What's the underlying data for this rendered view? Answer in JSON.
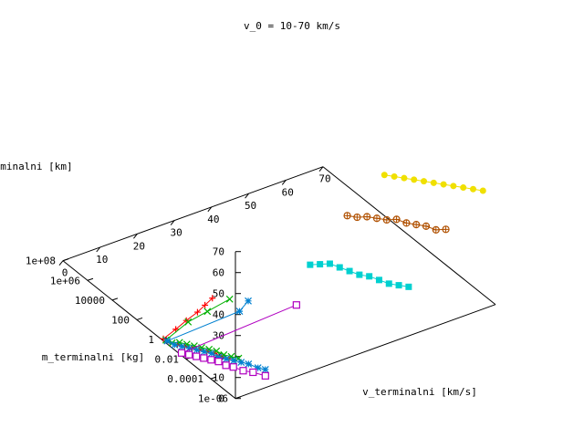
{
  "chart_data": {
    "type": "scatter",
    "title": "v_0 = 10-70 km/s",
    "xlabel": "v_terminalni [km/s]",
    "ylabel": "m_terminalni [kg]",
    "zlabel": "terminalni [km]",
    "x_ticks": [
      "0",
      "10",
      "20",
      "30",
      "40",
      "50",
      "60",
      "70"
    ],
    "y_ticks": [
      "1e-06",
      "0.0001",
      "0.01",
      "1",
      "100",
      "10000",
      "1e+06",
      "1e+08"
    ],
    "z_ticks": [
      "0",
      "10",
      "20",
      "30",
      "40",
      "50",
      "60",
      "70"
    ],
    "grid": false,
    "series": [
      {
        "color": "#ff0000",
        "marker": "plus",
        "points": [
          {
            "v": 0.5,
            "logm": 0.0,
            "h": 0
          },
          {
            "v": 5,
            "logm": 0.35,
            "h": 0
          },
          {
            "v": 9,
            "logm": 0.7,
            "h": 0
          },
          {
            "v": 13,
            "logm": 1.0,
            "h": 0
          },
          {
            "v": 16,
            "logm": 1.3,
            "h": 0
          },
          {
            "v": 19,
            "logm": 1.6,
            "h": 0
          },
          {
            "v": 0.3,
            "logm": -0.6,
            "h": 1
          },
          {
            "v": 0.3,
            "logm": -1.2,
            "h": 3
          },
          {
            "v": 0.3,
            "logm": -1.8,
            "h": 5
          },
          {
            "v": 0.3,
            "logm": -2.4,
            "h": 7
          },
          {
            "v": 0.3,
            "logm": -3.0,
            "h": 9
          },
          {
            "v": 0.3,
            "logm": -3.6,
            "h": 11
          },
          {
            "v": 0.3,
            "logm": -4.2,
            "h": 13
          },
          {
            "v": 0.3,
            "logm": -4.8,
            "h": 14
          },
          {
            "v": 0.3,
            "logm": -5.4,
            "h": 16
          }
        ]
      },
      {
        "color": "#00b000",
        "marker": "cross",
        "points": [
          {
            "v": 9,
            "logm": 0.55,
            "h": 0
          },
          {
            "v": 15,
            "logm": 0.8,
            "h": 0
          },
          {
            "v": 22,
            "logm": 1.1,
            "h": 0
          },
          {
            "v": 0.2,
            "logm": -0.3,
            "h": 1
          },
          {
            "v": 0.2,
            "logm": -0.8,
            "h": 2
          },
          {
            "v": 0.2,
            "logm": -1.4,
            "h": 5
          },
          {
            "v": 0.2,
            "logm": -2.0,
            "h": 7
          },
          {
            "v": 0.2,
            "logm": -2.6,
            "h": 9
          },
          {
            "v": 0.2,
            "logm": -3.2,
            "h": 11
          },
          {
            "v": 0.2,
            "logm": -3.8,
            "h": 13
          },
          {
            "v": 0.2,
            "logm": -4.4,
            "h": 15
          },
          {
            "v": 0.2,
            "logm": -5.0,
            "h": 16
          },
          {
            "v": 0.2,
            "logm": -5.6,
            "h": 18
          },
          {
            "v": 0.2,
            "logm": -6.2,
            "h": 20
          }
        ]
      },
      {
        "color": "#0080d0",
        "marker": "star",
        "points": [
          {
            "v": 21,
            "logm": 0.0,
            "h": 0
          },
          {
            "v": 25,
            "logm": 0.5,
            "h": 0
          },
          {
            "v": 0.2,
            "logm": -0.4,
            "h": 1
          },
          {
            "v": 0.2,
            "logm": -1.0,
            "h": 2
          },
          {
            "v": 0.2,
            "logm": -1.6,
            "h": 4
          },
          {
            "v": 0.2,
            "logm": -2.2,
            "h": 6
          },
          {
            "v": 0.2,
            "logm": -2.8,
            "h": 8
          },
          {
            "v": 0.2,
            "logm": -3.4,
            "h": 10
          },
          {
            "v": 0.2,
            "logm": -4.0,
            "h": 12
          },
          {
            "v": 0.2,
            "logm": -4.6,
            "h": 13
          },
          {
            "v": 0.2,
            "logm": -5.2,
            "h": 15
          },
          {
            "v": 0.2,
            "logm": -5.8,
            "h": 17
          },
          {
            "v": 0.2,
            "logm": -6.4,
            "h": 19
          },
          {
            "v": 0.2,
            "logm": -7.0,
            "h": 21
          },
          {
            "v": 0.1,
            "logm": -7.8,
            "h": 23
          },
          {
            "v": 0.1,
            "logm": -8.4,
            "h": 25
          }
        ]
      },
      {
        "color": "#b000c0",
        "marker": "square",
        "points": [
          {
            "v": 33,
            "logm": -1.0,
            "h": 0
          },
          {
            "v": 0.1,
            "logm": -1.6,
            "h": 1
          },
          {
            "v": 0.1,
            "logm": -2.2,
            "h": 3
          },
          {
            "v": 0.1,
            "logm": -2.8,
            "h": 5
          },
          {
            "v": 0.1,
            "logm": -3.4,
            "h": 7
          },
          {
            "v": 0.1,
            "logm": -4.0,
            "h": 9
          },
          {
            "v": 0.1,
            "logm": -4.6,
            "h": 11
          },
          {
            "v": 0.1,
            "logm": -5.2,
            "h": 12
          },
          {
            "v": 0.1,
            "logm": -5.8,
            "h": 14
          },
          {
            "v": 0.1,
            "logm": -6.6,
            "h": 16
          },
          {
            "v": 0.1,
            "logm": -7.4,
            "h": 19
          },
          {
            "v": 0.1,
            "logm": -8.4,
            "h": 22
          }
        ]
      },
      {
        "color": "#00d0d0",
        "marker": "filled-square",
        "points": [
          {
            "v": 40,
            "logm": -8.0,
            "h": 37
          },
          {
            "v": 40,
            "logm": -7.2,
            "h": 34
          },
          {
            "v": 40,
            "logm": -6.4,
            "h": 31
          },
          {
            "v": 40,
            "logm": -5.6,
            "h": 29
          },
          {
            "v": 40,
            "logm": -4.8,
            "h": 27
          },
          {
            "v": 40,
            "logm": -4.0,
            "h": 24
          },
          {
            "v": 40,
            "logm": -3.2,
            "h": 22
          },
          {
            "v": 40,
            "logm": -2.4,
            "h": 20
          },
          {
            "v": 40,
            "logm": -1.6,
            "h": 18
          },
          {
            "v": 40,
            "logm": -0.8,
            "h": 14
          },
          {
            "v": 40,
            "logm": 0.0,
            "h": 10
          }
        ]
      },
      {
        "color": "#b05000",
        "marker": "circle-plus",
        "points": [
          {
            "v": 50,
            "logm": -8.0,
            "h": 58
          },
          {
            "v": 50,
            "logm": -7.2,
            "h": 54
          },
          {
            "v": 50,
            "logm": -6.4,
            "h": 52
          },
          {
            "v": 50,
            "logm": -5.6,
            "h": 49
          },
          {
            "v": 50,
            "logm": -4.8,
            "h": 46
          },
          {
            "v": 50,
            "logm": -4.0,
            "h": 44
          },
          {
            "v": 50,
            "logm": -3.2,
            "h": 40
          },
          {
            "v": 50,
            "logm": -2.4,
            "h": 37
          },
          {
            "v": 50,
            "logm": -1.6,
            "h": 34
          },
          {
            "v": 50,
            "logm": -0.8,
            "h": 30
          },
          {
            "v": 50,
            "logm": 0.0,
            "h": 27
          }
        ]
      },
      {
        "color": "#f0e000",
        "marker": "filled-circle",
        "points": [
          {
            "v": 60,
            "logm": -8.0,
            "h": 70
          },
          {
            "v": 60,
            "logm": -7.2,
            "h": 67
          },
          {
            "v": 60,
            "logm": -6.4,
            "h": 64
          },
          {
            "v": 60,
            "logm": -5.6,
            "h": 61
          },
          {
            "v": 60,
            "logm": -4.8,
            "h": 58
          },
          {
            "v": 60,
            "logm": -4.0,
            "h": 55
          },
          {
            "v": 60,
            "logm": -3.2,
            "h": 52
          },
          {
            "v": 60,
            "logm": -2.4,
            "h": 49
          },
          {
            "v": 60,
            "logm": -1.6,
            "h": 46
          },
          {
            "v": 60,
            "logm": -0.8,
            "h": 43
          },
          {
            "v": 60,
            "logm": 0.0,
            "h": 40
          }
        ]
      }
    ]
  }
}
